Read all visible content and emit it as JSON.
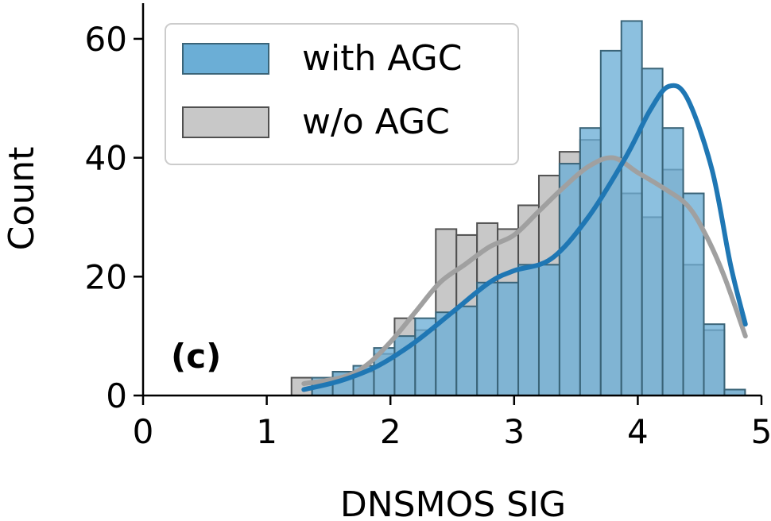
{
  "chart_data": {
    "type": "bar",
    "xlabel": "DNSMOS SIG",
    "ylabel": "Count",
    "panel_label": "(c)",
    "xlim": [
      0,
      5
    ],
    "ylim": [
      0,
      66
    ],
    "xticks": [
      "0",
      "1",
      "2",
      "3",
      "4",
      "5"
    ],
    "yticks": [
      "0",
      "20",
      "40",
      "60"
    ],
    "bin_start": 1.2,
    "bin_width": 0.1667,
    "legend_position": "top-left",
    "series": [
      {
        "name": "with AGC",
        "color": "#6baed6",
        "edge_color": "#3a6478",
        "curve_color": "#1f77b4",
        "values": [
          0,
          3,
          4,
          5,
          8,
          10,
          13,
          14,
          15,
          19,
          19,
          22,
          22,
          39,
          45,
          58,
          63,
          55,
          45,
          34,
          12,
          1
        ],
        "kde": [
          [
            1.3,
            1
          ],
          [
            1.6,
            2.5
          ],
          [
            1.9,
            5
          ],
          [
            2.2,
            9
          ],
          [
            2.5,
            14
          ],
          [
            2.8,
            19
          ],
          [
            3.0,
            21
          ],
          [
            3.3,
            23
          ],
          [
            3.6,
            30
          ],
          [
            3.9,
            40
          ],
          [
            4.1,
            48
          ],
          [
            4.25,
            52
          ],
          [
            4.4,
            50
          ],
          [
            4.6,
            38
          ],
          [
            4.75,
            22
          ],
          [
            4.87,
            12
          ]
        ]
      },
      {
        "name": "w/o AGC",
        "color": "#c8c8c8",
        "edge_color": "#505050",
        "curve_color": "#a0a0a0",
        "values": [
          3,
          2,
          4,
          4,
          7,
          13,
          11,
          28,
          27,
          29,
          28,
          32,
          37,
          41,
          43,
          40,
          34,
          30,
          38,
          22,
          11,
          1
        ],
        "kde": [
          [
            1.3,
            2
          ],
          [
            1.6,
            3
          ],
          [
            1.8,
            5
          ],
          [
            2.0,
            9
          ],
          [
            2.2,
            14
          ],
          [
            2.4,
            19
          ],
          [
            2.6,
            22
          ],
          [
            2.8,
            25
          ],
          [
            3.0,
            27
          ],
          [
            3.2,
            31
          ],
          [
            3.4,
            35
          ],
          [
            3.6,
            38.5
          ],
          [
            3.8,
            40
          ],
          [
            4.0,
            37.5
          ],
          [
            4.2,
            35
          ],
          [
            4.4,
            32
          ],
          [
            4.55,
            27
          ],
          [
            4.7,
            20
          ],
          [
            4.87,
            10
          ]
        ]
      }
    ]
  }
}
